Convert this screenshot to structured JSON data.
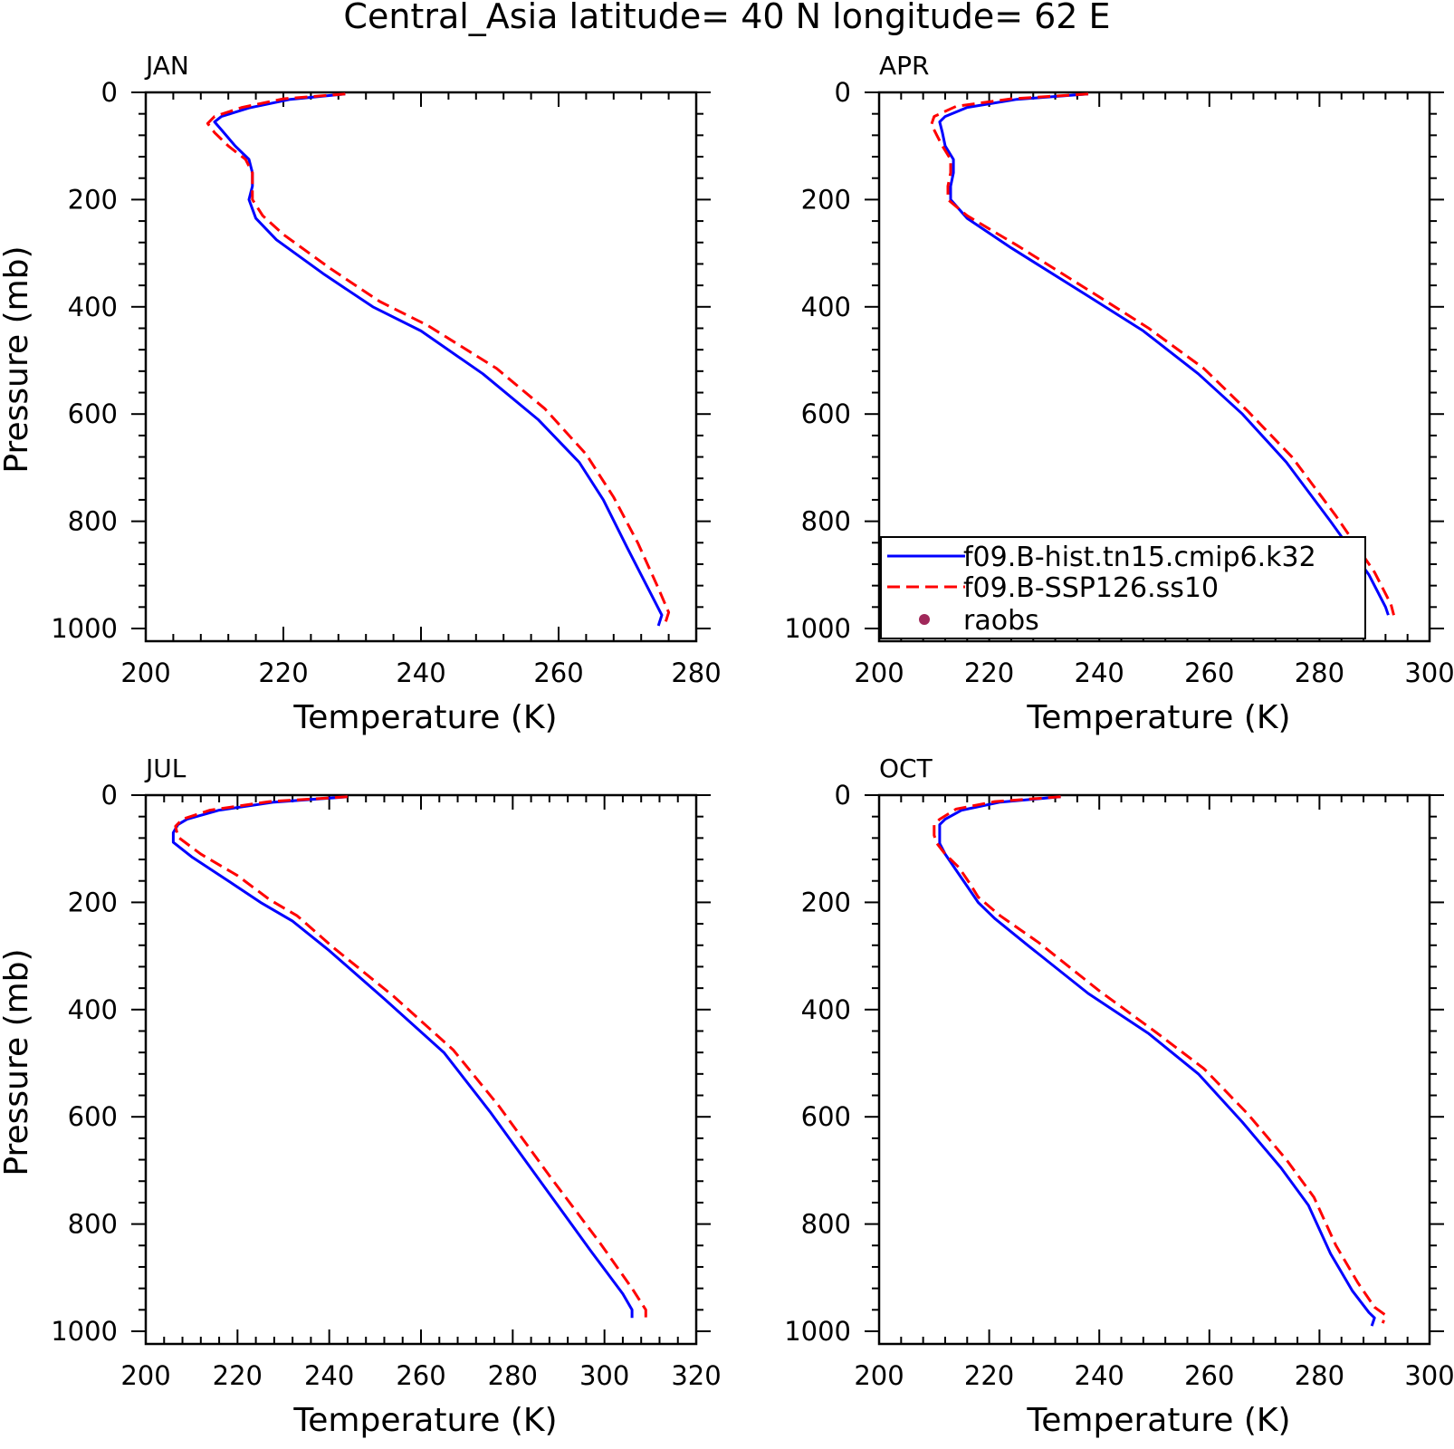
{
  "title": "Central_Asia  latitude= 40 N longitude= 62 E",
  "colors": {
    "hist": "#0000ff",
    "ssp": "#ff0000",
    "raobs": "#a0285a",
    "axes": "#000000"
  },
  "legend": {
    "placement": "bottom-left of APR panel",
    "entries": [
      {
        "label": "f09.B-hist.tn15.cmip6.k32",
        "style": "solid",
        "color": "#0000ff"
      },
      {
        "label": "f09.B-SSP126.ss10",
        "style": "dashed",
        "color": "#ff0000"
      },
      {
        "label": "raobs",
        "style": "marker",
        "color": "#a0285a"
      }
    ]
  },
  "chart_data": [
    {
      "type": "line",
      "panel": "JAN",
      "xlabel": "Temperature (K)",
      "ylabel": "Pressure (mb)",
      "xlim": [
        200,
        280
      ],
      "ylim": [
        1025,
        0
      ],
      "xticks": [
        200,
        220,
        240,
        260,
        280
      ],
      "yticks": [
        0,
        200,
        400,
        600,
        800,
        1000
      ],
      "grid": false,
      "series": [
        {
          "name": "f09.B-hist.tn15.cmip6.k32",
          "style": "solid",
          "points": [
            [
              229,
              3
            ],
            [
              221,
              13
            ],
            [
              215,
              29
            ],
            [
              211,
              45
            ],
            [
              210,
              55
            ],
            [
              211,
              70
            ],
            [
              213,
              100
            ],
            [
              215,
              125
            ],
            [
              215.5,
              150
            ],
            [
              215.5,
              175
            ],
            [
              215,
              200
            ],
            [
              216,
              235
            ],
            [
              219,
              275
            ],
            [
              226,
              340
            ],
            [
              233,
              400
            ],
            [
              240,
              445
            ],
            [
              249,
              525
            ],
            [
              257,
              610
            ],
            [
              263,
              690
            ],
            [
              266.5,
              760
            ],
            [
              270,
              850
            ],
            [
              273,
              925
            ],
            [
              275,
              975
            ],
            [
              274.5,
              995
            ]
          ]
        },
        {
          "name": "f09.B-SSP126.ss10",
          "style": "dashed",
          "points": [
            [
              229,
              3
            ],
            [
              220,
              12
            ],
            [
              214,
              28
            ],
            [
              210,
              45
            ],
            [
              209,
              58
            ],
            [
              210,
              75
            ],
            [
              212,
              100
            ],
            [
              214.5,
              125
            ],
            [
              215.5,
              150
            ],
            [
              215.5,
              175
            ],
            [
              215.5,
              200
            ],
            [
              217,
              230
            ],
            [
              220,
              265
            ],
            [
              227,
              330
            ],
            [
              234,
              390
            ],
            [
              241,
              435
            ],
            [
              251,
              515
            ],
            [
              258,
              590
            ],
            [
              264,
              675
            ],
            [
              268,
              755
            ],
            [
              271.5,
              840
            ],
            [
              274.5,
              925
            ],
            [
              276,
              970
            ],
            [
              275.5,
              990
            ]
          ]
        }
      ],
      "raobs": []
    },
    {
      "type": "line",
      "panel": "APR",
      "xlabel": "Temperature (K)",
      "ylabel": "",
      "xlim": [
        200,
        300
      ],
      "ylim": [
        1025,
        0
      ],
      "xticks": [
        200,
        220,
        240,
        260,
        280,
        300
      ],
      "yticks": [
        0,
        200,
        400,
        600,
        800,
        1000
      ],
      "grid": false,
      "series": [
        {
          "name": "f09.B-hist.tn15.cmip6.k32",
          "style": "solid",
          "points": [
            [
              238,
              3
            ],
            [
              225,
              13
            ],
            [
              216,
              28
            ],
            [
              212,
              45
            ],
            [
              211,
              55
            ],
            [
              211.5,
              75
            ],
            [
              212,
              100
            ],
            [
              213.5,
              125
            ],
            [
              213.5,
              150
            ],
            [
              213,
              175
            ],
            [
              213,
              200
            ],
            [
              216,
              235
            ],
            [
              224,
              290
            ],
            [
              238,
              380
            ],
            [
              248,
              445
            ],
            [
              258,
              525
            ],
            [
              266,
              600
            ],
            [
              274,
              690
            ],
            [
              282,
              800
            ],
            [
              289,
              900
            ],
            [
              292,
              960
            ],
            [
              292.5,
              975
            ]
          ]
        },
        {
          "name": "f09.B-SSP126.ss10",
          "style": "dashed",
          "points": [
            [
              238,
              3
            ],
            [
              224,
              12
            ],
            [
              214,
              26
            ],
            [
              210,
              45
            ],
            [
              209.5,
              60
            ],
            [
              210.5,
              80
            ],
            [
              211.5,
              100
            ],
            [
              213,
              125
            ],
            [
              213,
              150
            ],
            [
              212.5,
              175
            ],
            [
              212.5,
              200
            ],
            [
              216,
              230
            ],
            [
              225,
              285
            ],
            [
              239,
              375
            ],
            [
              249,
              440
            ],
            [
              259,
              515
            ],
            [
              267,
              595
            ],
            [
              275,
              680
            ],
            [
              283,
              790
            ],
            [
              290,
              895
            ],
            [
              293,
              955
            ],
            [
              293.5,
              975
            ]
          ]
        }
      ],
      "raobs": []
    },
    {
      "type": "line",
      "panel": "JUL",
      "xlabel": "Temperature (K)",
      "ylabel": "Pressure (mb)",
      "xlim": [
        200,
        320
      ],
      "ylim": [
        1025,
        0
      ],
      "xticks": [
        200,
        220,
        240,
        260,
        280,
        300,
        320
      ],
      "yticks": [
        0,
        200,
        400,
        600,
        800,
        1000
      ],
      "grid": false,
      "series": [
        {
          "name": "f09.B-hist.tn15.cmip6.k32",
          "style": "solid",
          "points": [
            [
              244,
              3
            ],
            [
              228,
              13
            ],
            [
              216,
              28
            ],
            [
              209,
              45
            ],
            [
              207,
              55
            ],
            [
              206,
              70
            ],
            [
              206,
              88
            ],
            [
              210,
              115
            ],
            [
              218,
              160
            ],
            [
              225,
              200
            ],
            [
              232,
              235
            ],
            [
              240,
              290
            ],
            [
              252,
              380
            ],
            [
              265,
              480
            ],
            [
              275,
              590
            ],
            [
              286,
              720
            ],
            [
              297,
              850
            ],
            [
              304,
              930
            ],
            [
              306,
              960
            ],
            [
              306,
              975
            ]
          ]
        },
        {
          "name": "f09.B-SSP126.ss10",
          "style": "dashed",
          "points": [
            [
              244,
              3
            ],
            [
              227,
              12
            ],
            [
              214,
              28
            ],
            [
              208,
              45
            ],
            [
              206.5,
              58
            ],
            [
              207,
              78
            ],
            [
              212,
              110
            ],
            [
              220,
              150
            ],
            [
              227,
              195
            ],
            [
              233,
              225
            ],
            [
              241,
              285
            ],
            [
              254,
              375
            ],
            [
              267,
              475
            ],
            [
              277,
              580
            ],
            [
              288,
              710
            ],
            [
              299,
              835
            ],
            [
              306,
              920
            ],
            [
              309,
              960
            ],
            [
              309,
              980
            ]
          ]
        }
      ],
      "raobs": []
    },
    {
      "type": "line",
      "panel": "OCT",
      "xlabel": "Temperature (K)",
      "ylabel": "",
      "xlim": [
        200,
        300
      ],
      "ylim": [
        1025,
        0
      ],
      "xticks": [
        200,
        220,
        240,
        260,
        280,
        300
      ],
      "yticks": [
        0,
        200,
        400,
        600,
        800,
        1000
      ],
      "grid": false,
      "series": [
        {
          "name": "f09.B-hist.tn15.cmip6.k32",
          "style": "solid",
          "points": [
            [
              233,
              3
            ],
            [
              222,
              13
            ],
            [
              215,
              28
            ],
            [
              212,
              45
            ],
            [
              211,
              55
            ],
            [
              211,
              75
            ],
            [
              211,
              90
            ],
            [
              212,
              110
            ],
            [
              214,
              140
            ],
            [
              216,
              170
            ],
            [
              218,
              200
            ],
            [
              221,
              230
            ],
            [
              227,
              280
            ],
            [
              238,
              370
            ],
            [
              249,
              445
            ],
            [
              258,
              520
            ],
            [
              266,
              610
            ],
            [
              273,
              695
            ],
            [
              278,
              765
            ],
            [
              282,
              855
            ],
            [
              286,
              925
            ],
            [
              289,
              965
            ],
            [
              290,
              975
            ],
            [
              289.5,
              990
            ]
          ]
        },
        {
          "name": "f09.B-SSP126.ss10",
          "style": "dashed",
          "points": [
            [
              233,
              3
            ],
            [
              221,
              12
            ],
            [
              214,
              26
            ],
            [
              211,
              45
            ],
            [
              210,
              55
            ],
            [
              210,
              75
            ],
            [
              210.5,
              90
            ],
            [
              212,
              110
            ],
            [
              214.5,
              135
            ],
            [
              216.5,
              165
            ],
            [
              218,
              190
            ],
            [
              222,
              225
            ],
            [
              229,
              275
            ],
            [
              240,
              365
            ],
            [
              250,
              440
            ],
            [
              259,
              510
            ],
            [
              267,
              595
            ],
            [
              274,
              680
            ],
            [
              279,
              750
            ],
            [
              283,
              840
            ],
            [
              287,
              910
            ],
            [
              290,
              955
            ],
            [
              292,
              970
            ],
            [
              291.5,
              985
            ]
          ]
        }
      ],
      "raobs": []
    }
  ]
}
